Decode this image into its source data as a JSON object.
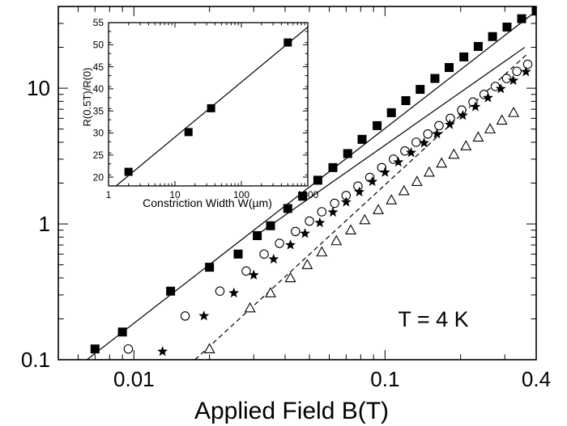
{
  "chart_data": [
    {
      "type": "scatter",
      "title": "",
      "xlabel": "Applied Field B(T)",
      "ylabel": "",
      "x_scale": "log",
      "y_scale": "log",
      "xlim": [
        0.005,
        0.4
      ],
      "ylim": [
        0.1,
        40
      ],
      "x_ticks": [
        {
          "value": 0.01,
          "label": "0.01"
        },
        {
          "value": 0.1,
          "label": "0.1"
        },
        {
          "value": 0.4,
          "label": "0.4"
        }
      ],
      "y_ticks": [
        {
          "value": 0.1,
          "label": "0.1"
        },
        {
          "value": 1,
          "label": "1"
        },
        {
          "value": 10,
          "label": "10"
        }
      ],
      "annotation": "T = 4 K",
      "series": [
        {
          "marker": "filled-square",
          "color": "#000000",
          "x": [
            0.007,
            0.009,
            0.014,
            0.02,
            0.026,
            0.031,
            0.035,
            0.041,
            0.047,
            0.054,
            0.062,
            0.071,
            0.081,
            0.093,
            0.106,
            0.121,
            0.138,
            0.158,
            0.18,
            0.206,
            0.235,
            0.268,
            0.306,
            0.35,
            0.4
          ],
          "y": [
            0.12,
            0.16,
            0.32,
            0.48,
            0.6,
            0.82,
            0.97,
            1.3,
            1.6,
            2.1,
            2.6,
            3.3,
            4.2,
            5.3,
            6.6,
            8.1,
            9.8,
            11.8,
            14.2,
            17,
            20.3,
            24,
            28.2,
            32.5,
            37
          ]
        },
        {
          "marker": "open-circle",
          "color": "#000000",
          "x": [
            0.0095,
            0.016,
            0.022,
            0.028,
            0.033,
            0.038,
            0.044,
            0.05,
            0.056,
            0.063,
            0.07,
            0.078,
            0.087,
            0.097,
            0.108,
            0.12,
            0.133,
            0.148,
            0.164,
            0.182,
            0.202,
            0.224,
            0.248,
            0.275,
            0.305,
            0.335,
            0.37
          ],
          "y": [
            0.12,
            0.21,
            0.32,
            0.45,
            0.6,
            0.72,
            0.88,
            1.05,
            1.23,
            1.42,
            1.62,
            1.9,
            2.2,
            2.6,
            3,
            3.45,
            4,
            4.6,
            5.3,
            6,
            6.9,
            7.9,
            9,
            10.3,
            11.8,
            13.3,
            15
          ]
        },
        {
          "marker": "star",
          "color": "#000000",
          "x": [
            0.013,
            0.019,
            0.025,
            0.03,
            0.036,
            0.042,
            0.048,
            0.055,
            0.062,
            0.07,
            0.079,
            0.089,
            0.1,
            0.113,
            0.127,
            0.143,
            0.161,
            0.181,
            0.204,
            0.229,
            0.257,
            0.289,
            0.324,
            0.364
          ],
          "y": [
            0.115,
            0.21,
            0.31,
            0.42,
            0.55,
            0.7,
            0.85,
            1.02,
            1.22,
            1.45,
            1.72,
            2.05,
            2.4,
            2.85,
            3.35,
            3.95,
            4.6,
            5.4,
            6.3,
            7.3,
            8.5,
            9.9,
            11.4,
            13.2
          ]
        },
        {
          "marker": "open-triangle",
          "color": "#000000",
          "x": [
            0.02,
            0.029,
            0.035,
            0.042,
            0.049,
            0.056,
            0.064,
            0.073,
            0.083,
            0.094,
            0.106,
            0.119,
            0.134,
            0.15,
            0.168,
            0.188,
            0.21,
            0.235,
            0.262,
            0.292,
            0.325
          ],
          "y": [
            0.12,
            0.24,
            0.31,
            0.4,
            0.5,
            0.62,
            0.75,
            0.9,
            1.07,
            1.27,
            1.5,
            1.75,
            2.05,
            2.4,
            2.8,
            3.25,
            3.75,
            4.35,
            5,
            5.8,
            6.6
          ]
        }
      ],
      "fit_lines": [
        {
          "style": "solid",
          "x": [
            0.0065,
            0.4
          ],
          "y": [
            0.1,
            37
          ]
        },
        {
          "style": "solid",
          "x": [
            0.03,
            0.36
          ],
          "y": [
            0.8,
            20
          ]
        },
        {
          "style": "dashed",
          "x": [
            0.0175,
            0.37
          ],
          "y": [
            0.1,
            18
          ]
        }
      ]
    },
    {
      "type": "scatter",
      "title": "",
      "xlabel": "Constriction Width W(µm)",
      "ylabel": "R(0.5T)/R(0)",
      "x_scale": "log",
      "y_scale": "linear",
      "xlim": [
        1,
        1000
      ],
      "ylim": [
        18,
        55
      ],
      "x_ticks": [
        {
          "value": 1,
          "label": "1"
        },
        {
          "value": 10,
          "label": "10"
        },
        {
          "value": 100,
          "label": "100"
        },
        {
          "value": 1000,
          "label": "1000"
        }
      ],
      "y_ticks": [
        {
          "value": 20,
          "label": "20"
        },
        {
          "value": 25,
          "label": "25"
        },
        {
          "value": 30,
          "label": "30"
        },
        {
          "value": 35,
          "label": "35"
        },
        {
          "value": 40,
          "label": "40"
        },
        {
          "value": 45,
          "label": "45"
        },
        {
          "value": 50,
          "label": "50"
        },
        {
          "value": 55,
          "label": "55"
        }
      ],
      "series": [
        {
          "marker": "filled-square",
          "color": "#000000",
          "x": [
            2,
            16,
            35,
            500
          ],
          "y": [
            21.2,
            30.2,
            35.6,
            50.5
          ]
        }
      ],
      "fit_lines": [
        {
          "style": "solid",
          "x": [
            1.3,
            1000
          ],
          "y": [
            18,
            54
          ]
        }
      ]
    }
  ]
}
